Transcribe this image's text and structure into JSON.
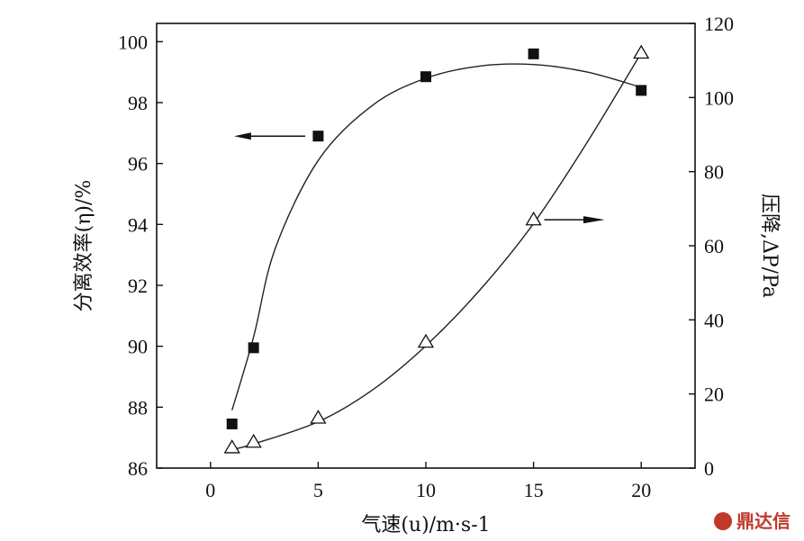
{
  "chart_data": {
    "type": "scatter",
    "x": [
      1,
      2,
      5,
      10,
      15,
      20
    ],
    "xlim": [
      -2.5,
      22.5
    ],
    "xticks": [
      0,
      5,
      10,
      15,
      20
    ],
    "xlabel": "气速(u)/m·s-1",
    "series": [
      {
        "axis": "left",
        "marker": "filled-square",
        "values": [
          87.45,
          89.95,
          96.9,
          98.85,
          99.6,
          98.4
        ]
      },
      {
        "axis": "right",
        "marker": "open-triangle",
        "values": [
          5.5,
          7,
          13.5,
          34,
          67,
          112
        ]
      }
    ],
    "y_left": {
      "lim": [
        86,
        100.6
      ],
      "ticks": [
        86,
        88,
        90,
        92,
        94,
        96,
        98,
        100
      ],
      "label": "分离效率(η)/%"
    },
    "y_right": {
      "lim": [
        0,
        120
      ],
      "ticks": [
        0,
        20,
        40,
        60,
        80,
        100,
        120
      ],
      "label": "压降,ΔP/Pa"
    },
    "annotations": [
      "arrow-left-to-left-axis",
      "arrow-right-to-right-axis"
    ],
    "grid": false
  },
  "watermark": {
    "text": "鼎达信",
    "color": "#c0392b"
  }
}
